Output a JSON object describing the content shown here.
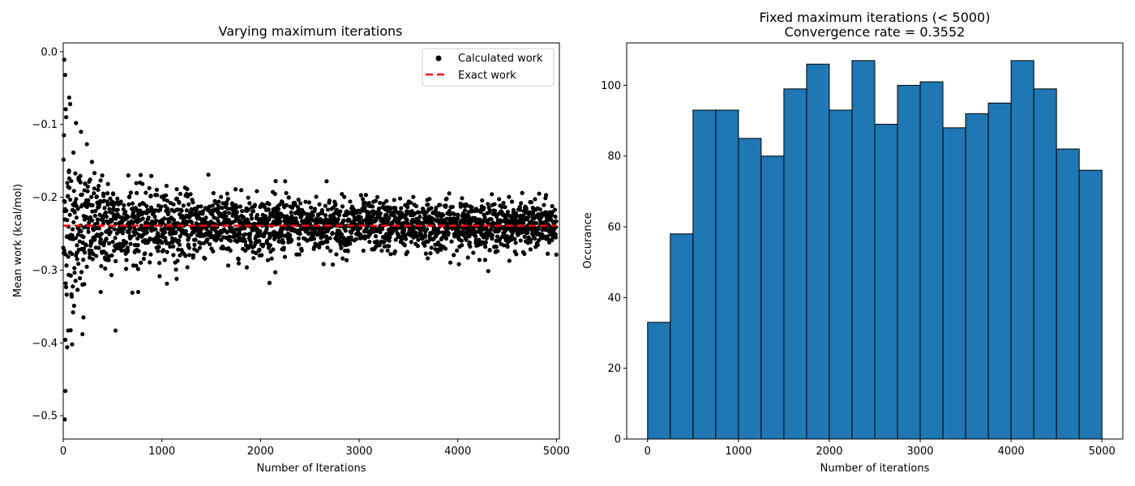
{
  "chart_data": [
    {
      "type": "scatter",
      "title": "Varying maximum iterations",
      "xlabel": "Number of Iterations",
      "ylabel": "Mean work (kcal/mol)",
      "xlim": [
        0,
        5030
      ],
      "ylim": [
        -0.532,
        0.012
      ],
      "xticks": [
        0,
        1000,
        2000,
        3000,
        4000,
        5000
      ],
      "xtick_labels": [
        "0",
        "1000",
        "2000",
        "3000",
        "4000",
        "5000"
      ],
      "yticks": [
        0.0,
        -0.1,
        -0.2,
        -0.3,
        -0.4,
        -0.5
      ],
      "ytick_labels": [
        "0.0",
        "−0.1",
        "−0.2",
        "−0.3",
        "−0.4",
        "−0.5"
      ],
      "grid": false,
      "legend_position": "top-right",
      "series": [
        {
          "name": "Calculated work",
          "color": "#000000",
          "marker": "circle",
          "description_of_distribution": "one point per iteration count, scattered around the exact work; spread narrows from about ±0.27 at low iterations to about ±0.03 at 5000 iterations",
          "points": [
            [
              10,
              -0.011
            ],
            [
              20,
              -0.032
            ],
            [
              25,
              -0.079
            ],
            [
              30,
              -0.09
            ],
            [
              15,
              -0.505
            ],
            [
              22,
              -0.466
            ],
            [
              40,
              -0.406
            ],
            [
              50,
              -0.383
            ],
            [
              60,
              -0.063
            ],
            [
              70,
              -0.072
            ],
            [
              90,
              -0.402
            ],
            [
              100,
              -0.358
            ],
            [
              110,
              -0.349
            ],
            [
              130,
              -0.098
            ],
            [
              180,
              -0.11
            ],
            [
              195,
              -0.388
            ],
            [
              205,
              -0.365
            ],
            [
              240,
              -0.127
            ],
            [
              380,
              -0.33
            ],
            [
              530,
              -0.383
            ],
            [
              660,
              -0.17
            ],
            [
              760,
              -0.33
            ],
            [
              1150,
              -0.312
            ],
            [
              2150,
              -0.303
            ],
            [
              2250,
              -0.178
            ],
            [
              2670,
              -0.178
            ]
          ]
        },
        {
          "name": "Exact work",
          "color": "#ff0000",
          "line_style": "dashed",
          "y": -0.239,
          "x_range": [
            0,
            5000
          ]
        }
      ]
    },
    {
      "type": "bar",
      "title": "Fixed maximum iterations (< 5000)",
      "subtitle": "Convergence rate = 0.3552",
      "xlabel": "Number of iterations",
      "ylabel": "Occurance",
      "xlim": [
        -230,
        5230
      ],
      "ylim": [
        0,
        112
      ],
      "xticks": [
        0,
        1000,
        2000,
        3000,
        4000,
        5000
      ],
      "xtick_labels": [
        "0",
        "1000",
        "2000",
        "3000",
        "4000",
        "5000"
      ],
      "yticks": [
        0,
        20,
        40,
        60,
        80,
        100
      ],
      "ytick_labels": [
        "0",
        "20",
        "40",
        "60",
        "80",
        "100"
      ],
      "grid": false,
      "bar_color": "#1f77b4",
      "bin_edges": [
        0,
        250,
        500,
        750,
        1000,
        1250,
        1500,
        1750,
        2000,
        2250,
        2500,
        2750,
        3000,
        3250,
        3500,
        3750,
        4000,
        4250,
        4500,
        4750,
        5000
      ],
      "values": [
        33,
        58,
        93,
        93,
        85,
        80,
        99,
        106,
        93,
        107,
        89,
        100,
        101,
        88,
        92,
        95,
        107,
        99,
        82,
        76
      ]
    }
  ]
}
